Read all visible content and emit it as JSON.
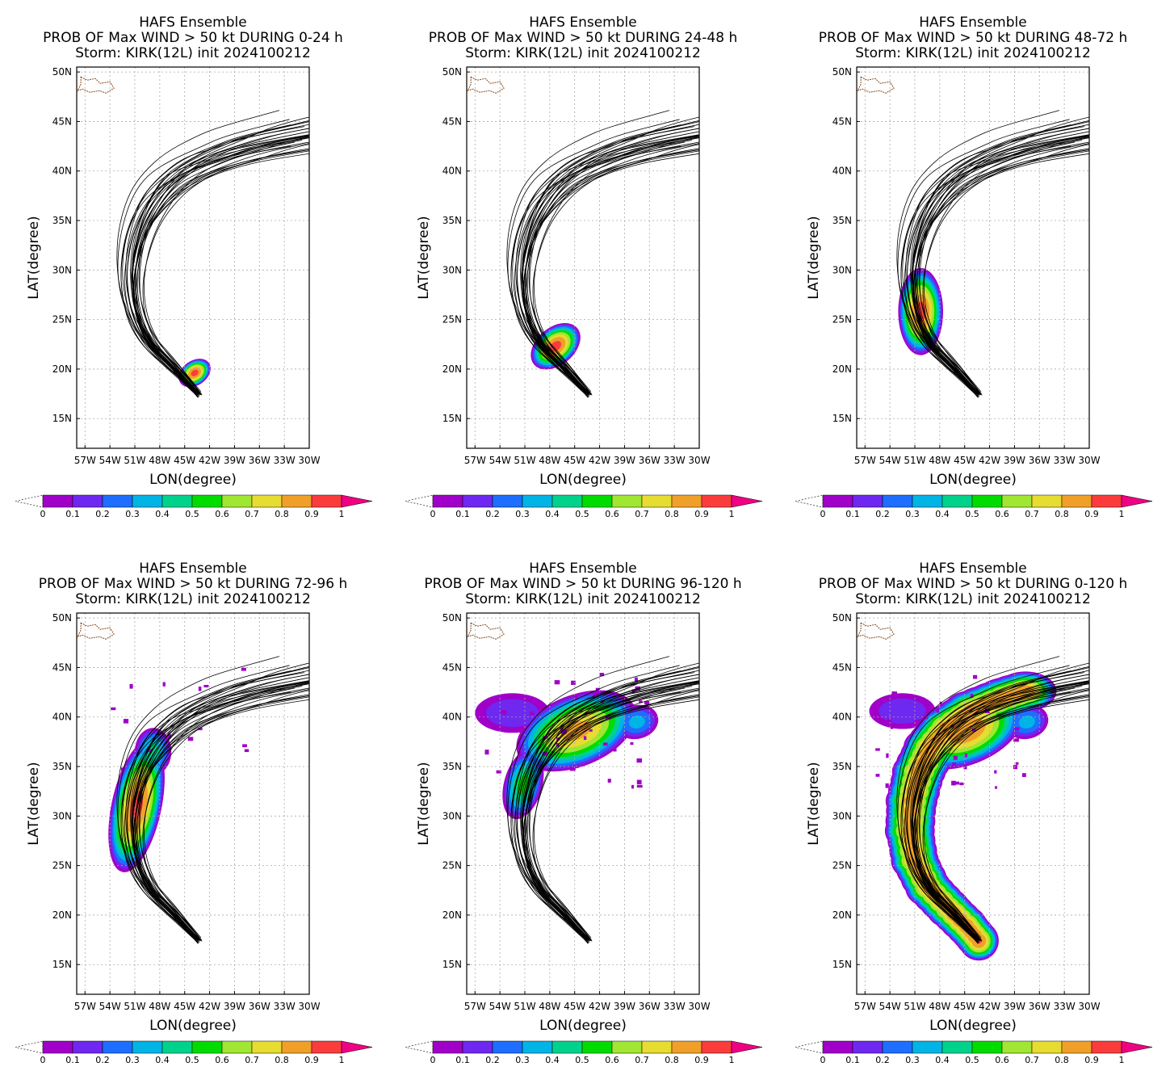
{
  "figure": {
    "panels": [
      {
        "title_lines": [
          "HAFS Ensemble",
          "PROB OF Max WIND > 50 kt DURING  0-24 h",
          "Storm: KIRK(12L) init 2024100212"
        ],
        "xlabel": "LON(degree)",
        "ylabel": "LAT(degree)",
        "blobs": [
          {
            "lon": -43.8,
            "lat": 19.6,
            "rx": 2.1,
            "ry": 1.25,
            "rot": -35,
            "peak": 0.95
          }
        ]
      },
      {
        "title_lines": [
          "HAFS Ensemble",
          "PROB OF Max WIND > 50 kt DURING 24-48 h",
          "Storm: KIRK(12L) init 2024100212"
        ],
        "xlabel": "LON(degree)",
        "ylabel": "LAT(degree)",
        "blobs": [
          {
            "lon": -47.3,
            "lat": 22.3,
            "rx": 3.4,
            "ry": 1.9,
            "rot": -40,
            "peak": 0.95
          }
        ]
      },
      {
        "title_lines": [
          "HAFS Ensemble",
          "PROB OF Max WIND > 50 kt DURING 48-72 h",
          "Storm: KIRK(12L) init 2024100212"
        ],
        "xlabel": "LON(degree)",
        "ylabel": "LAT(degree)",
        "blobs": [
          {
            "lon": -50.3,
            "lat": 25.8,
            "rx": 2.7,
            "ry": 4.4,
            "rot": 0,
            "peak": 0.95
          }
        ]
      },
      {
        "title_lines": [
          "HAFS Ensemble",
          "PROB OF Max WIND > 50 kt DURING 72-96 h",
          "Storm: KIRK(12L) init 2024100212"
        ],
        "xlabel": "LON(degree)",
        "ylabel": "LAT(degree)",
        "blobs": [
          {
            "lon": -50.8,
            "lat": 31.0,
            "rx": 3.0,
            "ry": 6.8,
            "rot": 12,
            "peak": 0.95
          },
          {
            "lon": -48.8,
            "lat": 36.5,
            "rx": 2.2,
            "ry": 2.4,
            "rot": 0,
            "peak": 0.45
          }
        ]
      },
      {
        "title_lines": [
          "HAFS Ensemble",
          "PROB OF Max WIND > 50 kt DURING 96-120 h",
          "Storm: KIRK(12L) init 2024100212"
        ],
        "xlabel": "LON(degree)",
        "ylabel": "LAT(degree)",
        "blobs": [
          {
            "lon": -44.8,
            "lat": 38.6,
            "rx": 7.6,
            "ry": 3.6,
            "rot": -22,
            "peak": 0.85
          },
          {
            "lon": -51.2,
            "lat": 33.2,
            "rx": 2.3,
            "ry": 3.6,
            "rot": 15,
            "peak": 0.55
          },
          {
            "lon": -37.5,
            "lat": 39.5,
            "rx": 2.6,
            "ry": 1.7,
            "rot": -15,
            "peak": 0.35
          },
          {
            "lon": -52.5,
            "lat": 40.4,
            "rx": 4.5,
            "ry": 2.0,
            "rot": 0,
            "peak": 0.2
          }
        ]
      },
      {
        "title_lines": [
          "HAFS Ensemble",
          "PROB OF Max WIND > 50 kt DURING 0-120 h",
          "Storm: KIRK(12L) init 2024100212"
        ],
        "xlabel": "LON(degree)",
        "ylabel": "LAT(degree)",
        "band": true,
        "blobs": [
          {
            "lon": -44.8,
            "lat": 38.6,
            "rx": 7.2,
            "ry": 3.4,
            "rot": -22,
            "peak": 0.9
          },
          {
            "lon": -37.5,
            "lat": 39.5,
            "rx": 2.6,
            "ry": 1.7,
            "rot": -15,
            "peak": 0.35
          },
          {
            "lon": -52.5,
            "lat": 40.6,
            "rx": 4.0,
            "ry": 1.8,
            "rot": 0,
            "peak": 0.2
          }
        ]
      }
    ],
    "axis": {
      "lon_ticks": [
        "57W",
        "54W",
        "51W",
        "48W",
        "45W",
        "42W",
        "39W",
        "36W",
        "33W",
        "30W"
      ],
      "lon_values": [
        -57,
        -54,
        -51,
        -48,
        -45,
        -42,
        -39,
        -36,
        -33,
        -30
      ],
      "lat_ticks": [
        "15N",
        "20N",
        "25N",
        "30N",
        "35N",
        "40N",
        "45N",
        "50N"
      ],
      "lat_values": [
        15,
        20,
        25,
        30,
        35,
        40,
        45,
        50
      ],
      "xlim": [
        -58,
        -30
      ],
      "ylim": [
        12,
        50.5
      ]
    },
    "colorbar": {
      "labels": [
        "0",
        "0.1",
        "0.2",
        "0.3",
        "0.4",
        "0.5",
        "0.6",
        "0.7",
        "0.8",
        "0.9",
        "1"
      ],
      "colors": [
        "#a000c8",
        "#6e28f0",
        "#1e6eff",
        "#00b4e6",
        "#00d28c",
        "#00dc00",
        "#a0e632",
        "#e6dc32",
        "#f0a028",
        "#fa3c3c",
        "#f00082"
      ]
    }
  },
  "chart_data": {
    "type": "heatmap",
    "title": "HAFS Ensemble — PROB OF Max WIND > 50 kt, Storm: KIRK(12L) init 2024100212",
    "panels": [
      "0-24 h",
      "24-48 h",
      "48-72 h",
      "72-96 h",
      "96-120 h",
      "0-120 h"
    ],
    "xlabel": "LON(degree)",
    "ylabel": "LAT(degree)",
    "xlim": [
      -58,
      -30
    ],
    "ylim": [
      12,
      50.5
    ],
    "colorbar_range": [
      0,
      1
    ],
    "mean_track": [
      {
        "lon": -43.3,
        "lat": 17.4
      },
      {
        "lon": -44.8,
        "lat": 18.9
      },
      {
        "lon": -47.0,
        "lat": 20.7
      },
      {
        "lon": -49.4,
        "lat": 22.8
      },
      {
        "lon": -51.0,
        "lat": 25.5
      },
      {
        "lon": -51.6,
        "lat": 28.5
      },
      {
        "lon": -51.4,
        "lat": 31.5
      },
      {
        "lon": -50.5,
        "lat": 34.5
      },
      {
        "lon": -49.0,
        "lat": 37.0
      },
      {
        "lon": -47.0,
        "lat": 39.0
      },
      {
        "lon": -44.0,
        "lat": 40.7
      },
      {
        "lon": -40.0,
        "lat": 42.0
      },
      {
        "lon": -36.5,
        "lat": 42.9
      }
    ],
    "peak_probability": [
      0.95,
      0.95,
      0.95,
      0.95,
      0.85,
      0.9
    ]
  }
}
